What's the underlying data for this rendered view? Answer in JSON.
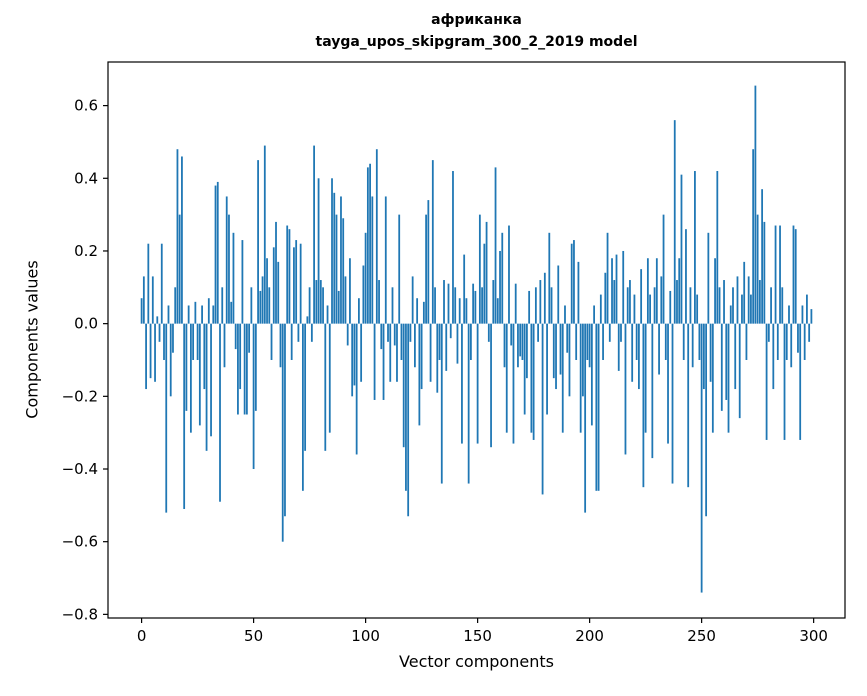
{
  "figure": {
    "title_line1": "африканка",
    "title_line2": "tayga_upos_skipgram_300_2_2019 model",
    "xlabel": "Vector components",
    "ylabel": "Components values",
    "bar_color": "#1f77b4",
    "background": "#ffffff"
  },
  "chart_data": {
    "type": "bar",
    "title": "африканка — tayga_upos_skipgram_300_2_2019 model",
    "xlabel": "Vector components",
    "ylabel": "Components values",
    "legend": "none",
    "grid": false,
    "xlim": [
      -15,
      314
    ],
    "ylim": [
      -0.81,
      0.72
    ],
    "xticks": [
      0,
      50,
      100,
      150,
      200,
      250,
      300
    ],
    "yticks": [
      -0.8,
      -0.6,
      -0.4,
      -0.2,
      0.0,
      0.2,
      0.4,
      0.6
    ],
    "x_start": 0,
    "values": [
      0.07,
      0.13,
      -0.18,
      0.22,
      -0.15,
      0.13,
      -0.16,
      0.02,
      -0.05,
      0.22,
      -0.1,
      -0.52,
      0.05,
      -0.2,
      -0.08,
      0.1,
      0.48,
      0.3,
      0.46,
      -0.51,
      -0.24,
      0.05,
      -0.3,
      -0.1,
      0.06,
      -0.1,
      -0.28,
      0.05,
      -0.18,
      -0.35,
      0.07,
      -0.31,
      0.05,
      0.38,
      0.39,
      -0.49,
      0.1,
      -0.12,
      0.35,
      0.3,
      0.06,
      0.25,
      -0.07,
      -0.25,
      -0.18,
      0.23,
      -0.25,
      -0.25,
      -0.08,
      0.1,
      -0.4,
      -0.24,
      0.45,
      0.09,
      0.13,
      0.49,
      0.18,
      0.1,
      -0.1,
      0.21,
      0.28,
      0.17,
      -0.12,
      -0.6,
      -0.53,
      0.27,
      0.26,
      -0.1,
      0.21,
      0.23,
      -0.05,
      0.22,
      -0.46,
      -0.35,
      0.02,
      0.1,
      -0.05,
      0.49,
      0.12,
      0.4,
      0.12,
      0.1,
      -0.35,
      0.05,
      -0.3,
      0.4,
      0.36,
      0.3,
      0.09,
      0.35,
      0.29,
      0.13,
      -0.06,
      0.18,
      -0.2,
      -0.17,
      -0.36,
      0.07,
      -0.16,
      0.16,
      0.25,
      0.43,
      0.44,
      0.35,
      -0.21,
      0.48,
      0.12,
      -0.07,
      -0.21,
      0.35,
      -0.05,
      -0.16,
      0.1,
      -0.06,
      -0.16,
      0.3,
      -0.1,
      -0.34,
      -0.46,
      -0.53,
      -0.05,
      0.13,
      -0.12,
      0.07,
      -0.28,
      -0.18,
      0.06,
      0.3,
      0.34,
      -0.16,
      0.45,
      0.1,
      -0.19,
      -0.1,
      -0.44,
      0.12,
      -0.13,
      0.11,
      -0.04,
      0.42,
      0.1,
      -0.11,
      0.07,
      -0.33,
      0.19,
      0.07,
      -0.44,
      -0.1,
      0.11,
      0.09,
      -0.33,
      0.3,
      0.1,
      0.22,
      0.28,
      -0.05,
      -0.34,
      0.12,
      0.43,
      0.07,
      0.2,
      0.25,
      -0.12,
      -0.3,
      0.27,
      -0.06,
      -0.33,
      0.11,
      -0.12,
      -0.09,
      -0.1,
      -0.25,
      -0.15,
      0.09,
      -0.3,
      -0.32,
      0.1,
      -0.05,
      0.12,
      -0.47,
      0.14,
      -0.25,
      0.25,
      0.1,
      -0.15,
      -0.18,
      0.16,
      -0.14,
      -0.3,
      0.05,
      -0.08,
      -0.2,
      0.22,
      0.23,
      -0.1,
      0.17,
      -0.3,
      -0.2,
      -0.52,
      -0.1,
      -0.12,
      -0.28,
      0.05,
      -0.46,
      -0.46,
      0.08,
      -0.1,
      0.14,
      0.25,
      -0.05,
      0.18,
      0.12,
      0.19,
      -0.13,
      -0.05,
      0.2,
      -0.36,
      0.1,
      0.12,
      -0.16,
      0.08,
      -0.1,
      -0.18,
      0.15,
      -0.45,
      -0.3,
      0.18,
      0.08,
      -0.37,
      0.1,
      0.18,
      -0.14,
      0.13,
      0.3,
      -0.1,
      -0.33,
      0.09,
      -0.44,
      0.56,
      0.12,
      0.18,
      0.41,
      -0.1,
      0.26,
      -0.45,
      0.1,
      -0.12,
      0.42,
      0.08,
      -0.1,
      -0.74,
      -0.18,
      -0.53,
      0.25,
      -0.16,
      -0.3,
      0.18,
      0.42,
      0.1,
      -0.24,
      0.12,
      -0.21,
      -0.3,
      0.05,
      0.1,
      -0.18,
      0.13,
      -0.26,
      0.08,
      0.17,
      -0.1,
      0.13,
      0.08,
      0.48,
      0.655,
      0.3,
      0.12,
      0.37,
      0.28,
      -0.32,
      -0.05,
      0.1,
      -0.18,
      0.27,
      -0.1,
      0.27,
      0.1,
      -0.32,
      -0.1,
      0.05,
      -0.12,
      0.27,
      0.26,
      -0.08,
      -0.32,
      0.05,
      -0.1,
      0.08,
      -0.05,
      0.04
    ]
  }
}
